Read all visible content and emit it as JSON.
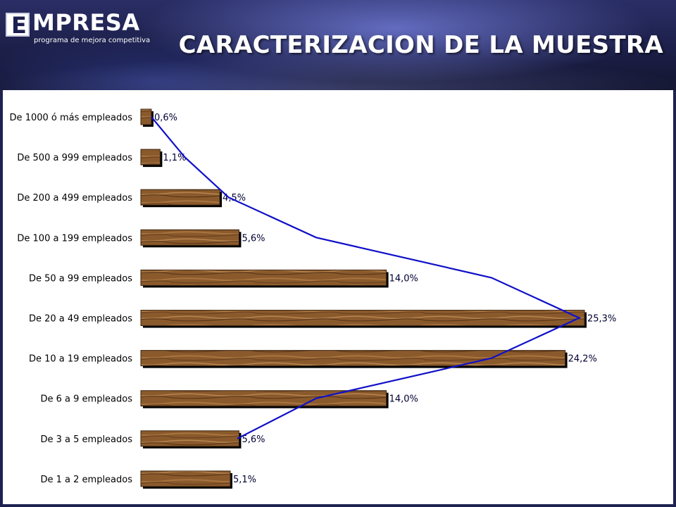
{
  "header": {
    "logo_letter": "E",
    "logo_word": "MPRESA",
    "logo_subtitle": "programa de mejora competitiva",
    "title": "CARACTERIZACION DE LA MUESTRA"
  },
  "colors": {
    "bar_fill": "#8a5a2c",
    "bar_grain": "#c08a55",
    "line": "#1010c8",
    "panel": "#ffffff",
    "header_bg": "#1e2250"
  },
  "chart_data": {
    "type": "bar",
    "orientation": "horizontal",
    "categories": [
      "De 1000 ó más empleados",
      "De 500 a 999 empleados",
      "De 200 a 499 empleados",
      "De 100 a 199 empleados",
      "De 50 a 99 empleados",
      "De 20 a 49 empleados",
      "De 10 a 19 empleados",
      "De 6 a 9 empleados",
      "De 3 a 5 empleados",
      "De 1 a 2 empleados"
    ],
    "values": [
      0.6,
      1.1,
      4.5,
      5.6,
      14.0,
      25.3,
      24.2,
      14.0,
      5.6,
      5.1
    ],
    "value_labels": [
      "0,6%",
      "1,1%",
      "4,5%",
      "5,6%",
      "14,0%",
      "25,3%",
      "24,2%",
      "14,0%",
      "5,6%",
      "5,1%"
    ],
    "overlay_line": {
      "type": "line",
      "values": [
        0.6,
        2.5,
        5.0,
        10.0,
        20.0,
        25.0,
        20.0,
        10.0,
        5.5
      ]
    },
    "xlim": [
      0,
      25.3
    ],
    "title": "",
    "xlabel": "",
    "ylabel": "",
    "grid": false,
    "legend": "none"
  }
}
